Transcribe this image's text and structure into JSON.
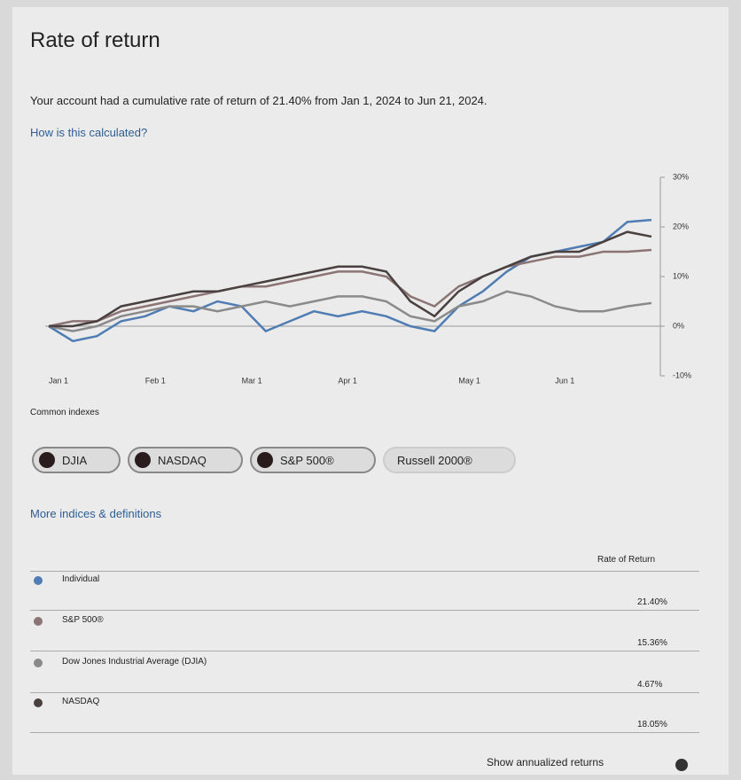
{
  "header": {
    "title": "Rate of return",
    "summary": "Your account had a cumulative rate of return of 21.40% from Jan 1, 2024 to Jun 21, 2024.",
    "link": "How is this calculated?"
  },
  "chart_data": {
    "type": "line",
    "categories": [
      "Jan 1",
      null,
      null,
      null,
      "Feb 1",
      null,
      null,
      null,
      "Mar 1",
      null,
      null,
      null,
      "Apr 1",
      null,
      null,
      null,
      null,
      "May 1",
      null,
      null,
      null,
      "Jun 1",
      null,
      null,
      null,
      null
    ],
    "series": [
      {
        "name": "Individual",
        "color": "#4f7db3",
        "values": [
          0,
          -3,
          -2,
          1,
          2,
          4,
          3,
          5,
          4,
          -1,
          1,
          3,
          2,
          3,
          2,
          0,
          -1,
          4,
          7,
          11,
          14,
          15,
          16,
          17,
          21,
          21.4
        ]
      },
      {
        "name": "S&P 500®",
        "color": "#8c7474",
        "values": [
          0,
          1,
          1,
          3,
          4,
          5,
          6,
          7,
          8,
          8,
          9,
          10,
          11,
          11,
          10,
          6,
          4,
          8,
          10,
          12,
          13,
          14,
          14,
          15,
          15,
          15.36
        ]
      },
      {
        "name": "Dow Jones Industrial Average (DJIA)",
        "color": "#8a8a8a",
        "values": [
          0,
          -1,
          0,
          2,
          3,
          4,
          4,
          3,
          4,
          5,
          4,
          5,
          6,
          6,
          5,
          2,
          1,
          4,
          5,
          7,
          6,
          4,
          3,
          3,
          4,
          4.67
        ]
      },
      {
        "name": "NASDAQ",
        "color": "#4a4040",
        "values": [
          0,
          0,
          1,
          4,
          5,
          6,
          7,
          7,
          8,
          9,
          10,
          11,
          12,
          12,
          11,
          5,
          2,
          7,
          10,
          12,
          14,
          15,
          15,
          17,
          19,
          18.05
        ]
      }
    ],
    "ylim": [
      -10,
      30
    ],
    "yticks": [
      {
        "value": -10,
        "label": "-10%"
      },
      {
        "value": 0,
        "label": "0%"
      },
      {
        "value": 10,
        "label": "10%"
      },
      {
        "value": 20,
        "label": "20%"
      },
      {
        "value": 30,
        "label": "30%"
      }
    ]
  },
  "indexes": {
    "title": "Common indexes",
    "chips": [
      "DJIA",
      "NASDAQ",
      "S&P 500®",
      "Russell 2000®"
    ],
    "link": "More indices & definitions"
  },
  "table": {
    "header": "Rate of Return",
    "rates": [
      "21.40%",
      "15.36%",
      "4.67%",
      "18.05%"
    ]
  },
  "footer": {
    "toggle": "Show annualized returns"
  }
}
